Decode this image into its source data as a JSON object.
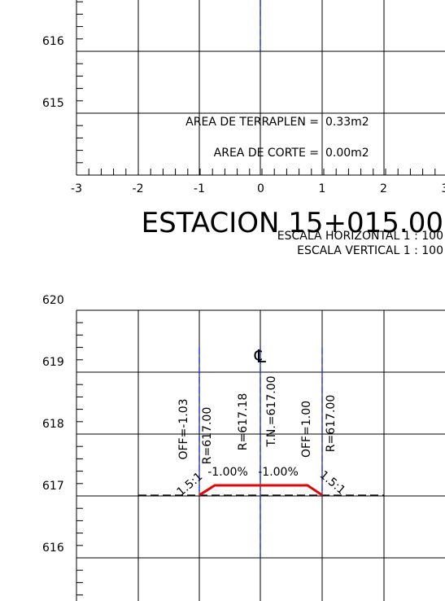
{
  "upper_section": {
    "y_labels": [
      "616",
      "615"
    ],
    "x_labels": [
      "-3",
      "-2",
      "-1",
      "0",
      "1",
      "2",
      "3"
    ],
    "fill_area_label": "AREA DE TERRAPLEN =",
    "fill_area_value": "0.33m2",
    "cut_area_label": "AREA DE CORTE =",
    "cut_area_value": "0.00m2"
  },
  "station": {
    "title": "ESTACION 15+015.00",
    "horizontal_scale": "ESCALA HORIZONTAL 1 : 100",
    "vertical_scale": "ESCALA VERTICAL 1 : 100"
  },
  "lower_section": {
    "y_labels": [
      "620",
      "619",
      "618",
      "617",
      "616"
    ],
    "centerline_symbol": "℄",
    "annotations": [
      "OFF=-1.03",
      "R=617.00",
      "R=617.18",
      "T.N.=617.00",
      "OFF=1.00",
      "R=617.00"
    ],
    "slopes": [
      "1.5:1",
      "-1.00%",
      "-1.00%",
      "1.5:1"
    ]
  }
}
